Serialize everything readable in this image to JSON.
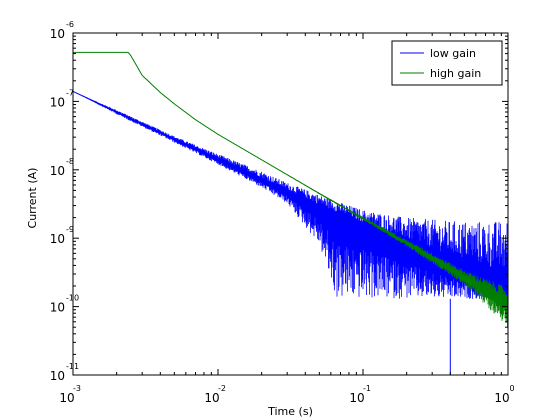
{
  "chart_data": {
    "type": "line",
    "xlabel": "Time (s)",
    "ylabel": "Current (A)",
    "xscale": "log",
    "yscale": "log",
    "xlim": [
      0.001,
      1
    ],
    "ylim": [
      1e-11,
      1e-06
    ],
    "grid": false,
    "legend_position": "top-right",
    "x_ticks": [
      {
        "base": "10",
        "exp": "-3",
        "value": 0.001
      },
      {
        "base": "10",
        "exp": "-2",
        "value": 0.01
      },
      {
        "base": "10",
        "exp": "-1",
        "value": 0.1
      },
      {
        "base": "10",
        "exp": "0",
        "value": 1
      }
    ],
    "y_ticks": [
      {
        "base": "10",
        "exp": "-11",
        "value": 1e-11
      },
      {
        "base": "10",
        "exp": "-10",
        "value": 1e-10
      },
      {
        "base": "10",
        "exp": "-9",
        "value": 1e-09
      },
      {
        "base": "10",
        "exp": "-8",
        "value": 1e-08
      },
      {
        "base": "10",
        "exp": "-7",
        "value": 1e-07
      },
      {
        "base": "10",
        "exp": "-6",
        "value": 1e-06
      }
    ],
    "series": [
      {
        "name": "low gain",
        "color": "#0000ff",
        "x": [
          0.001,
          0.002,
          0.005,
          0.01,
          0.02,
          0.03,
          0.05,
          0.065,
          0.1,
          0.2,
          0.4,
          0.7,
          1.0
        ],
        "y": [
          1.4e-07,
          7e-08,
          2.8e-08,
          1.4e-08,
          7e-09,
          4.6e-09,
          2.7e-09,
          2.1e-09,
          1.4e-09,
          7e-10,
          3.5e-10,
          2e-10,
          1.4e-10
        ],
        "noise_band_upper": [
          1.4e-07,
          7.5e-08,
          3.1e-08,
          1.7e-08,
          9.5e-09,
          6.5e-09,
          4.3e-09,
          3.5e-09,
          2.6e-09,
          2e-09,
          1.8e-09,
          1.8e-09,
          1.8e-09
        ],
        "noise_band_lower": [
          1.4e-07,
          6.5e-08,
          2.5e-08,
          1.2e-08,
          5.5e-09,
          3.2e-09,
          8e-10,
          1.3e-10,
          1.3e-10,
          1.3e-10,
          1.3e-10,
          1.3e-10,
          1.3e-10
        ],
        "spike": {
          "x": 0.4,
          "y": 1e-11
        }
      },
      {
        "name": "high gain",
        "color": "#007f00",
        "x": [
          0.001,
          0.0024,
          0.0025,
          0.003,
          0.004,
          0.005,
          0.007,
          0.01,
          0.02,
          0.05,
          0.1,
          0.2,
          0.5,
          1.0
        ],
        "y": [
          5.2e-07,
          5.2e-07,
          4.7e-07,
          2.4e-07,
          1.35e-07,
          9.2e-08,
          5.4e-08,
          3.3e-08,
          1.4e-08,
          4.5e-09,
          1.95e-09,
          8.5e-10,
          2.7e-10,
          1.1e-10
        ],
        "noise_band_upper": [
          5.2e-07,
          5.2e-07,
          4.7e-07,
          2.4e-07,
          1.35e-07,
          9.2e-08,
          5.4e-08,
          3.3e-08,
          1.4e-08,
          4.6e-09,
          2.05e-09,
          9.5e-10,
          3.4e-10,
          1.9e-10
        ],
        "noise_band_lower": [
          5.2e-07,
          5.2e-07,
          4.7e-07,
          2.4e-07,
          1.35e-07,
          9.2e-08,
          5.4e-08,
          3.3e-08,
          1.4e-08,
          4.4e-09,
          1.85e-09,
          7.6e-10,
          2.1e-10,
          5e-11
        ]
      }
    ]
  }
}
